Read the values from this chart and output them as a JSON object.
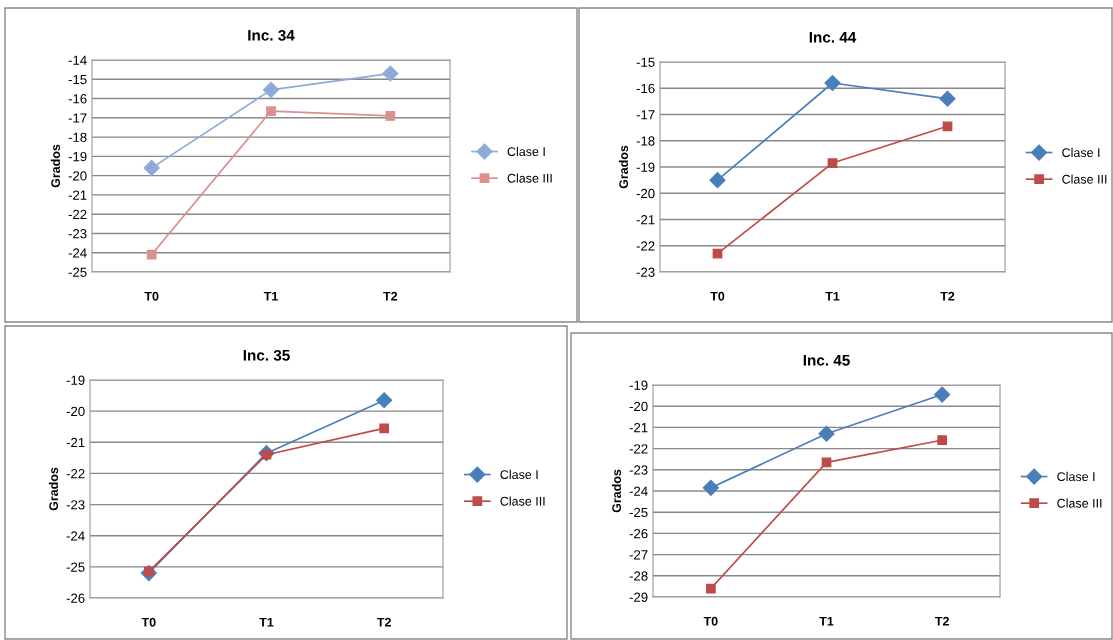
{
  "chart_data": [
    {
      "type": "line",
      "title": "Inc. 34",
      "ylabel": "Grados",
      "categories": [
        "T0",
        "T1",
        "T2"
      ],
      "ylim": [
        -25,
        -14
      ],
      "yticks": [
        -25,
        -24,
        -23,
        -22,
        -21,
        -20,
        -19,
        -18,
        -17,
        -16,
        -15,
        -14
      ],
      "grid": "y",
      "legend": "right",
      "series": [
        {
          "name": "Clase I",
          "color": "#8eaadb",
          "marker": "diamond",
          "values": [
            -19.6,
            -15.55,
            -14.7
          ]
        },
        {
          "name": "Clase III",
          "color": "#d9908e",
          "marker": "square",
          "values": [
            -24.1,
            -16.65,
            -16.9
          ]
        }
      ]
    },
    {
      "type": "line",
      "title": "Inc. 44",
      "ylabel": "Grados",
      "categories": [
        "T0",
        "T1",
        "T2"
      ],
      "ylim": [
        -23,
        -15
      ],
      "yticks": [
        -23,
        -22,
        -21,
        -20,
        -19,
        -18,
        -17,
        -16,
        -15
      ],
      "grid": "y",
      "legend": "right",
      "series": [
        {
          "name": "Clase I",
          "color": "#4a7ebb",
          "marker": "diamond",
          "values": [
            -19.5,
            -15.8,
            -16.4
          ]
        },
        {
          "name": "Clase III",
          "color": "#be4b48",
          "marker": "square",
          "values": [
            -22.3,
            -18.85,
            -17.45
          ]
        }
      ]
    },
    {
      "type": "line",
      "title": "Inc. 35",
      "ylabel": "Grados",
      "categories": [
        "T0",
        "T1",
        "T2"
      ],
      "ylim": [
        -26,
        -19
      ],
      "yticks": [
        -26,
        -25,
        -24,
        -23,
        -22,
        -21,
        -20,
        -19
      ],
      "grid": "y",
      "legend": "right",
      "series": [
        {
          "name": "Clase I",
          "color": "#4a7ebb",
          "marker": "diamond",
          "values": [
            -25.2,
            -21.35,
            -19.65
          ]
        },
        {
          "name": "Clase III",
          "color": "#be4b48",
          "marker": "square",
          "values": [
            -25.15,
            -21.4,
            -20.55
          ]
        }
      ]
    },
    {
      "type": "line",
      "title": "Inc. 45",
      "ylabel": "Grados",
      "categories": [
        "T0",
        "T1",
        "T2"
      ],
      "ylim": [
        -29,
        -19
      ],
      "yticks": [
        -29,
        -28,
        -27,
        -26,
        -25,
        -24,
        -23,
        -22,
        -21,
        -20,
        -19
      ],
      "grid": "y",
      "legend": "right",
      "series": [
        {
          "name": "Clase I",
          "color": "#4a7ebb",
          "marker": "diamond",
          "values": [
            -23.85,
            -21.3,
            -19.45
          ]
        },
        {
          "name": "Clase III",
          "color": "#be4b48",
          "marker": "square",
          "values": [
            -28.6,
            -22.65,
            -21.6
          ]
        }
      ]
    }
  ]
}
